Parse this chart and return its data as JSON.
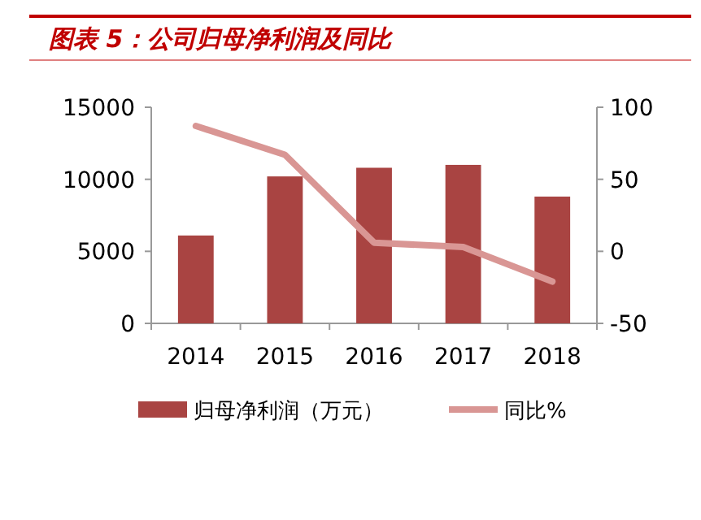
{
  "chart_data": {
    "type": "bar",
    "title": "图表 5：公司归母净利润及同比",
    "categories": [
      "2014",
      "2015",
      "2016",
      "2017",
      "2018"
    ],
    "series": [
      {
        "name": "归母净利润（万元）",
        "color": "#a94442",
        "values": [
          6100,
          10200,
          10800,
          11000,
          8800
        ]
      },
      {
        "name": "同比%",
        "type": "line",
        "axis": "y2",
        "color": "#d99694",
        "values": [
          87,
          67,
          6,
          3,
          -21
        ]
      }
    ],
    "ylim": [
      0,
      15000
    ],
    "yticks": [
      0,
      5000,
      10000,
      15000
    ],
    "y2lim": [
      -50,
      100
    ],
    "y2ticks": [
      -50,
      0,
      50,
      100
    ],
    "legend": "bottom",
    "grid": false
  }
}
